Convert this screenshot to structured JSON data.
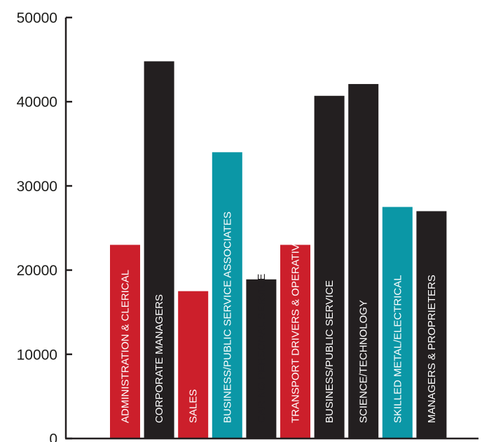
{
  "chart_data": {
    "type": "bar",
    "title": "",
    "xlabel": "",
    "ylabel": "",
    "ylim": [
      0,
      50000
    ],
    "yticks": [
      0,
      10000,
      20000,
      30000,
      40000,
      50000
    ],
    "ytick_labels": [
      "0",
      "10000",
      "20000",
      "30000",
      "40000",
      "50000"
    ],
    "grid": false,
    "legend": "none",
    "categories": [
      "ADMINISTRATION & CLERICAL",
      "CORPORATE MANAGERS",
      "SALES",
      "BUSINESS/PUBLIC SERVICE ASSOCIATES",
      "CARING PERSONAL SERVICE",
      "TRANSPORT DRIVERS & OPERATIVES",
      "BUSINESS/PUBLIC SERVICE",
      "SCIENCE/TECHNOLOGY",
      "SKILLED METAL/ELECTRICAL",
      "MANAGERS & PROPRIETERS"
    ],
    "values": [
      23000,
      44800,
      17500,
      34000,
      18900,
      23000,
      40700,
      42100,
      27500,
      27000
    ],
    "bar_colors": [
      "#cc1f2b",
      "#231f20",
      "#cc1f2b",
      "#0b97a6",
      "#231f20",
      "#cc1f2b",
      "#231f20",
      "#231f20",
      "#0b97a6",
      "#231f20"
    ],
    "label_colors": [
      "#ffffff",
      "#ffffff",
      "#ffffff",
      "#ffffff",
      "#231f20",
      "#ffffff",
      "#ffffff",
      "#ffffff",
      "#ffffff",
      "#ffffff"
    ]
  },
  "colors": {
    "axis": "#231f20",
    "red": "#cc1f2b",
    "black": "#231f20",
    "teal": "#0b97a6"
  }
}
